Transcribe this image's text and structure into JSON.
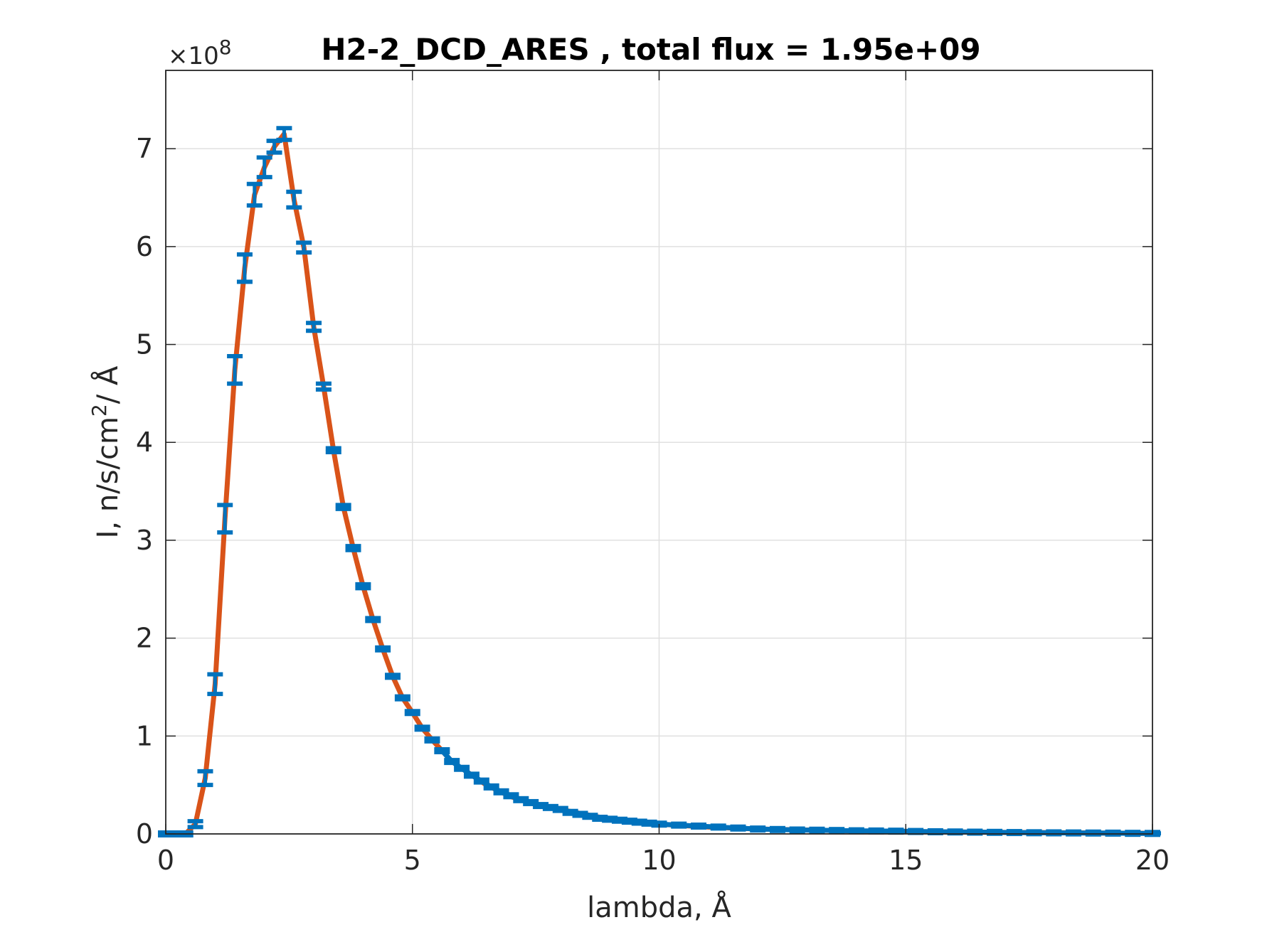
{
  "chart_data": {
    "type": "line",
    "title": "H2-2_DCD_ARES , total flux =  1.95e+09",
    "xlabel": "lambda,  Å",
    "ylabel_main": "I, n/s/cm",
    "ylabel_sup": "2",
    "ylabel_tail": "/ Å",
    "y_exponent_base": "×10",
    "y_exponent_power": "8",
    "xlim": [
      0,
      20
    ],
    "ylim": [
      0,
      7.8
    ],
    "xticks": [
      0,
      5,
      10,
      15,
      20
    ],
    "xtick_labels": [
      "0",
      "5",
      "10",
      "15",
      "20"
    ],
    "yticks": [
      0,
      1,
      2,
      3,
      4,
      5,
      6,
      7
    ],
    "ytick_labels": [
      "0",
      "1",
      "2",
      "3",
      "4",
      "5",
      "6",
      "7"
    ],
    "grid": true,
    "y_scale_factor": 100000000,
    "colors": {
      "fit": "#D95319",
      "data": "#0072BD",
      "grid": "#e0e0e0",
      "axis": "#262626"
    },
    "series": [
      {
        "role": "fit",
        "x": [
          0.0,
          0.4,
          0.6,
          0.8,
          1.0,
          1.2,
          1.4,
          1.6,
          1.8,
          2.0,
          2.2,
          2.4,
          2.6,
          2.8,
          3.0,
          3.2,
          3.4,
          3.6,
          3.8,
          4.0,
          4.2,
          4.4,
          4.6,
          4.8,
          5.0,
          5.2,
          5.4,
          5.6,
          5.8,
          6.0,
          6.5,
          7.0,
          7.5,
          8.0,
          8.5,
          9.0,
          9.5,
          10.0,
          11.0,
          12.0,
          13.0,
          14.0,
          15.0,
          16.0,
          17.0,
          18.0,
          19.0,
          20.0
        ],
        "y": [
          0.0,
          0.0,
          0.1,
          0.57,
          1.53,
          3.22,
          4.74,
          5.78,
          6.53,
          6.81,
          7.02,
          7.15,
          6.48,
          5.99,
          5.18,
          4.57,
          3.92,
          3.34,
          2.92,
          2.53,
          2.19,
          1.89,
          1.61,
          1.39,
          1.24,
          1.08,
          0.96,
          0.85,
          0.74,
          0.67,
          0.5,
          0.38,
          0.3,
          0.25,
          0.2,
          0.15,
          0.12,
          0.1,
          0.07,
          0.05,
          0.04,
          0.03,
          0.025,
          0.02,
          0.015,
          0.012,
          0.008,
          0.005
        ]
      },
      {
        "role": "data",
        "x": [
          0.0,
          0.1,
          0.2,
          0.3,
          0.4,
          0.6,
          0.8,
          1.0,
          1.2,
          1.4,
          1.6,
          1.8,
          2.0,
          2.2,
          2.4,
          2.6,
          2.8,
          3.0,
          3.2,
          3.4,
          3.6,
          3.8,
          4.0,
          4.2,
          4.4,
          4.6,
          4.8,
          5.0,
          5.2,
          5.4,
          5.6,
          5.8,
          6.0,
          6.2,
          6.4,
          6.6,
          6.8,
          7.0,
          7.2,
          7.4,
          7.6,
          7.8,
          8.0,
          8.2,
          8.4,
          8.6,
          8.8,
          9.0,
          9.2,
          9.4,
          9.6,
          9.8,
          10.0,
          10.4,
          10.8,
          11.2,
          11.6,
          12.0,
          12.4,
          12.8,
          13.2,
          13.6,
          14.0,
          14.4,
          14.8,
          15.2,
          15.6,
          16.0,
          16.4,
          16.8,
          17.2,
          17.6,
          18.0,
          18.4,
          18.8,
          19.2,
          19.6,
          20.0
        ],
        "y": [
          0.0,
          0.0,
          0.0,
          0.0,
          0.0,
          0.1,
          0.57,
          1.53,
          3.22,
          4.74,
          5.78,
          6.53,
          6.81,
          7.02,
          7.15,
          6.48,
          5.99,
          5.18,
          4.57,
          3.92,
          3.34,
          2.92,
          2.53,
          2.19,
          1.89,
          1.61,
          1.39,
          1.24,
          1.08,
          0.96,
          0.85,
          0.74,
          0.67,
          0.6,
          0.54,
          0.48,
          0.43,
          0.39,
          0.35,
          0.32,
          0.29,
          0.27,
          0.25,
          0.22,
          0.2,
          0.18,
          0.16,
          0.15,
          0.14,
          0.13,
          0.12,
          0.11,
          0.1,
          0.09,
          0.08,
          0.07,
          0.06,
          0.05,
          0.045,
          0.04,
          0.038,
          0.035,
          0.032,
          0.03,
          0.028,
          0.025,
          0.022,
          0.02,
          0.018,
          0.016,
          0.014,
          0.012,
          0.011,
          0.01,
          0.009,
          0.008,
          0.006,
          0.005
        ],
        "yerr": [
          0.0,
          0.0,
          0.0,
          0.0,
          0.0,
          0.03,
          0.07,
          0.1,
          0.14,
          0.14,
          0.14,
          0.11,
          0.1,
          0.06,
          0.06,
          0.08,
          0.05,
          0.04,
          0.03,
          0.02,
          0.02,
          0.02,
          0.02,
          0.01,
          0.01,
          0.01,
          0.01,
          0.01,
          0.01,
          0.01,
          0.01,
          0.01,
          0.01,
          0.01,
          0.01,
          0.01,
          0.01,
          0.01,
          0.01,
          0.01,
          0.01,
          0.01,
          0.01,
          0.01,
          0.01,
          0.01,
          0.01,
          0.01,
          0.01,
          0.01,
          0.01,
          0.01,
          0.01,
          0.01,
          0.01,
          0.01,
          0.01,
          0.01,
          0.01,
          0.01,
          0.01,
          0.01,
          0.01,
          0.01,
          0.01,
          0.01,
          0.01,
          0.01,
          0.01,
          0.01,
          0.01,
          0.01,
          0.01,
          0.01,
          0.01,
          0.01,
          0.01,
          0.01
        ]
      }
    ]
  }
}
